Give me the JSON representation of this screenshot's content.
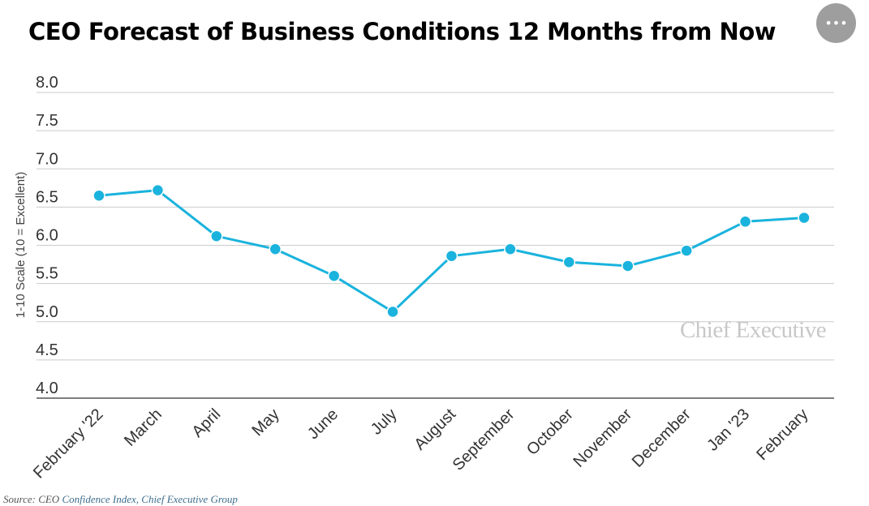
{
  "chart_data": {
    "type": "line",
    "title": "CEO Forecast of Business Conditions 12 Months from Now",
    "ylabel": "1-10 Scale (10 = Excellent)",
    "xlabel": "",
    "categories": [
      "February '22",
      "March",
      "April",
      "May",
      "June",
      "July",
      "August",
      "September",
      "October",
      "November",
      "December",
      "Jan '23",
      "February"
    ],
    "series": [
      {
        "values": [
          6.65,
          6.72,
          6.12,
          5.95,
          5.6,
          5.13,
          5.86,
          5.95,
          5.78,
          5.73,
          5.93,
          6.31,
          6.36
        ]
      }
    ],
    "ylim": [
      4.0,
      8.0
    ],
    "yticks": [
      "8.0",
      "7.5",
      "7.0",
      "6.5",
      "6.0",
      "5.5",
      "5.0",
      "4.5",
      "4.0"
    ],
    "grid": true,
    "legend": "none",
    "colors": {
      "line": "#1ab3dd",
      "grid": "#cccccc",
      "axis": "#333333"
    },
    "watermark": "Chief Executive"
  },
  "menu": {
    "icon": "more-dots-icon",
    "label": "•••"
  },
  "source": {
    "prefix": "Source: CEO ",
    "link_text": "Confidence Index, Chief Executive Group"
  }
}
